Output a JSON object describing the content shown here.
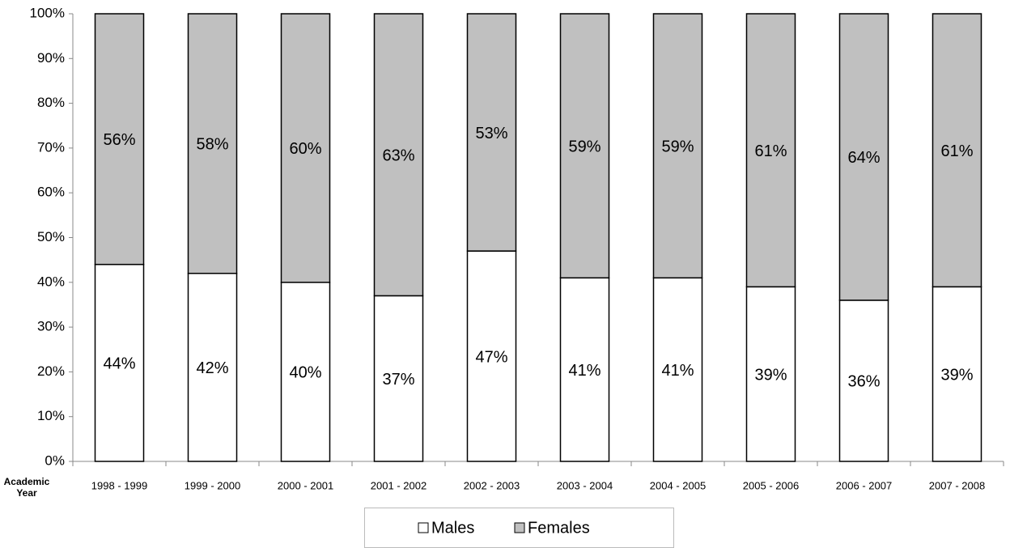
{
  "chart_data": {
    "type": "stacked_bar",
    "x_label": "Academic Year",
    "categories": [
      "1998 - 1999",
      "1999 - 2000",
      "2000 - 2001",
      "2001 - 2002",
      "2002 - 2003",
      "2003 - 2004",
      "2004 - 2005",
      "2005 - 2006",
      "2006 - 2007",
      "2007 - 2008"
    ],
    "series": [
      {
        "name": "Males",
        "color": "#ffffff",
        "values": [
          44,
          42,
          40,
          37,
          47,
          41,
          41,
          39,
          36,
          39
        ],
        "value_labels": [
          "44%",
          "42%",
          "40%",
          "37%",
          "47%",
          "41%",
          "41%",
          "39%",
          "36%",
          "39%"
        ]
      },
      {
        "name": "Females",
        "color": "#c0c0c0",
        "values": [
          56,
          58,
          60,
          63,
          53,
          59,
          59,
          61,
          64,
          61
        ],
        "value_labels": [
          "56%",
          "58%",
          "60%",
          "63%",
          "53%",
          "59%",
          "59%",
          "61%",
          "64%",
          "61%"
        ]
      }
    ],
    "ylim": [
      0,
      100
    ],
    "yticks": [
      {
        "value": 0,
        "label": "0%"
      },
      {
        "value": 10,
        "label": "10%"
      },
      {
        "value": 20,
        "label": "20%"
      },
      {
        "value": 30,
        "label": "30%"
      },
      {
        "value": 40,
        "label": "40%"
      },
      {
        "value": 50,
        "label": "50%"
      },
      {
        "value": 60,
        "label": "60%"
      },
      {
        "value": 70,
        "label": "70%"
      },
      {
        "value": 80,
        "label": "80%"
      },
      {
        "value": 90,
        "label": "90%"
      },
      {
        "value": 100,
        "label": "100%"
      }
    ],
    "legend": "bottom",
    "grid": false
  }
}
